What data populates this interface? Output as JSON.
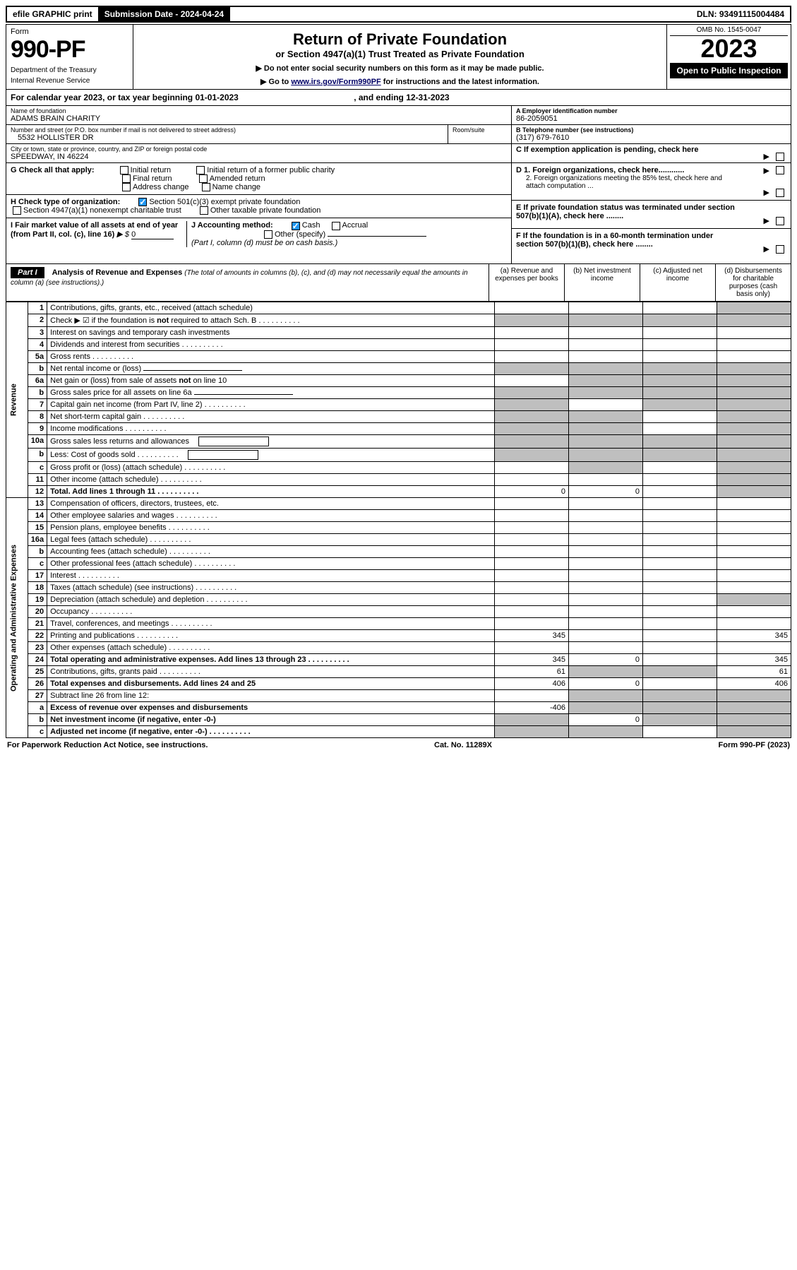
{
  "topbar": {
    "efile": "efile GRAPHIC print",
    "submission_label": "Submission Date - 2024-04-24",
    "dln": "DLN: 93491115004484"
  },
  "header": {
    "form_word": "Form",
    "form_number": "990-PF",
    "dept1": "Department of the Treasury",
    "dept2": "Internal Revenue Service",
    "title": "Return of Private Foundation",
    "subtitle": "or Section 4947(a)(1) Trust Treated as Private Foundation",
    "instr1": "▶ Do not enter social security numbers on this form as it may be made public.",
    "instr2_pre": "▶ Go to ",
    "instr2_link": "www.irs.gov/Form990PF",
    "instr2_post": " for instructions and the latest information.",
    "omb": "OMB No. 1545-0047",
    "year": "2023",
    "open": "Open to Public Inspection"
  },
  "calyear": {
    "text_pre": "For calendar year 2023, or tax year beginning ",
    "begin": "01-01-2023",
    "mid": " , and ending ",
    "end": "12-31-2023"
  },
  "id_block": {
    "name_label": "Name of foundation",
    "name": "ADAMS BRAIN CHARITY",
    "addr_label": "Number and street (or P.O. box number if mail is not delivered to street address)",
    "addr": "5532 HOLLISTER DR",
    "room_label": "Room/suite",
    "city_label": "City or town, state or province, country, and ZIP or foreign postal code",
    "city": "SPEEDWAY, IN  46224",
    "a_label": "A Employer identification number",
    "a_val": "86-2059051",
    "b_label": "B Telephone number (see instructions)",
    "b_val": "(317) 679-7610",
    "c_label": "C If exemption application is pending, check here",
    "d1_label": "D 1. Foreign organizations, check here............",
    "d2_label": "2. Foreign organizations meeting the 85% test, check here and attach computation ...",
    "e_label": "E  If private foundation status was terminated under section 507(b)(1)(A), check here ........",
    "f_label": "F  If the foundation is in a 60-month termination under section 507(b)(1)(B), check here ........"
  },
  "g_block": {
    "g_label": "G Check all that apply:",
    "opts": [
      "Initial return",
      "Initial return of a former public charity",
      "Final return",
      "Amended return",
      "Address change",
      "Name change"
    ],
    "h_label": "H Check type of organization:",
    "h_opt1": "Section 501(c)(3) exempt private foundation",
    "h_opt2": "Section 4947(a)(1) nonexempt charitable trust",
    "h_opt3": "Other taxable private foundation",
    "i_label": "I Fair market value of all assets at end of year (from Part II, col. (c), line 16)",
    "i_val": "0",
    "j_label": "J Accounting method:",
    "j_cash": "Cash",
    "j_accrual": "Accrual",
    "j_other": "Other (specify)",
    "j_note": "(Part I, column (d) must be on cash basis.)"
  },
  "partI": {
    "label": "Part I",
    "title": "Analysis of Revenue and Expenses",
    "note": " (The total of amounts in columns (b), (c), and (d) may not necessarily equal the amounts in column (a) (see instructions).)",
    "col_a": "(a)   Revenue and expenses per books",
    "col_b": "(b)   Net investment income",
    "col_c": "(c)   Adjusted net income",
    "col_d": "(d)   Disbursements for charitable purposes (cash basis only)"
  },
  "side_rev": "Revenue",
  "side_exp": "Operating and Administrative Expenses",
  "rows": [
    {
      "n": "1",
      "d": "Contributions, gifts, grants, etc., received (attach schedule)",
      "a": "",
      "b": "",
      "c": "",
      "dsh_b": false,
      "dsh_c": false,
      "dsh_d": true
    },
    {
      "n": "2",
      "d": "Check ▶ ☑ if the foundation is not required to attach Sch. B",
      "all_shade": true,
      "dots": true
    },
    {
      "n": "3",
      "d": "Interest on savings and temporary cash investments"
    },
    {
      "n": "4",
      "d": "Dividends and interest from securities",
      "dots": true
    },
    {
      "n": "5a",
      "d": "Gross rents",
      "dots": true
    },
    {
      "n": "b",
      "d": "Net rental income or (loss)",
      "inline_ul": true,
      "all_shade": true
    },
    {
      "n": "6a",
      "d": "Net gain or (loss) from sale of assets not on line 10",
      "dsh_b": true,
      "dsh_c": true,
      "dsh_d": true
    },
    {
      "n": "b",
      "d": "Gross sales price for all assets on line 6a",
      "inline_ul": true,
      "all_shade": true
    },
    {
      "n": "7",
      "d": "Capital gain net income (from Part IV, line 2)",
      "dots": true,
      "dsh_a": true,
      "dsh_c": true,
      "dsh_d": true
    },
    {
      "n": "8",
      "d": "Net short-term capital gain",
      "dots": true,
      "dsh_a": true,
      "dsh_b": true,
      "dsh_d": true
    },
    {
      "n": "9",
      "d": "Income modifications",
      "dots": true,
      "dsh_a": true,
      "dsh_b": true,
      "dsh_d": true
    },
    {
      "n": "10a",
      "d": "Gross sales less returns and allowances",
      "box": true,
      "all_shade": true
    },
    {
      "n": "b",
      "d": "Less: Cost of goods sold",
      "dots": true,
      "box": true,
      "all_shade": true
    },
    {
      "n": "c",
      "d": "Gross profit or (loss) (attach schedule)",
      "dots": true,
      "dsh_b": true,
      "dsh_d": true
    },
    {
      "n": "11",
      "d": "Other income (attach schedule)",
      "dots": true,
      "dsh_d": true
    },
    {
      "n": "12",
      "d": "Total. Add lines 1 through 11",
      "dots": true,
      "bold": true,
      "a": "0",
      "b": "0",
      "dsh_d": true
    }
  ],
  "exp_rows": [
    {
      "n": "13",
      "d": "Compensation of officers, directors, trustees, etc."
    },
    {
      "n": "14",
      "d": "Other employee salaries and wages",
      "dots": true
    },
    {
      "n": "15",
      "d": "Pension plans, employee benefits",
      "dots": true
    },
    {
      "n": "16a",
      "d": "Legal fees (attach schedule)",
      "dots": true
    },
    {
      "n": "b",
      "d": "Accounting fees (attach schedule)",
      "dots": true
    },
    {
      "n": "c",
      "d": "Other professional fees (attach schedule)",
      "dots": true
    },
    {
      "n": "17",
      "d": "Interest",
      "dots": true
    },
    {
      "n": "18",
      "d": "Taxes (attach schedule) (see instructions)",
      "dots": true
    },
    {
      "n": "19",
      "d": "Depreciation (attach schedule) and depletion",
      "dots": true,
      "dsh_d": true
    },
    {
      "n": "20",
      "d": "Occupancy",
      "dots": true
    },
    {
      "n": "21",
      "d": "Travel, conferences, and meetings",
      "dots": true
    },
    {
      "n": "22",
      "d": "Printing and publications",
      "dots": true,
      "a": "345",
      "dd": "345"
    },
    {
      "n": "23",
      "d": "Other expenses (attach schedule)",
      "dots": true
    },
    {
      "n": "24",
      "d": "Total operating and administrative expenses. Add lines 13 through 23",
      "dots": true,
      "bold": true,
      "a": "345",
      "b": "0",
      "dd": "345"
    },
    {
      "n": "25",
      "d": "Contributions, gifts, grants paid",
      "dots": true,
      "a": "61",
      "dsh_b": true,
      "dsh_c": true,
      "dd": "61"
    },
    {
      "n": "26",
      "d": "Total expenses and disbursements. Add lines 24 and 25",
      "bold": true,
      "a": "406",
      "b": "0",
      "dd": "406"
    },
    {
      "n": "27",
      "d": "Subtract line 26 from line 12:",
      "dsh_b": true,
      "dsh_c": true,
      "dsh_d": true
    },
    {
      "n": "a",
      "d": "Excess of revenue over expenses and disbursements",
      "bold": true,
      "a": "-406",
      "dsh_b": true,
      "dsh_c": true,
      "dsh_d": true
    },
    {
      "n": "b",
      "d": "Net investment income (if negative, enter -0-)",
      "bold": true,
      "dsh_a": true,
      "b": "0",
      "dsh_c": true,
      "dsh_d": true
    },
    {
      "n": "c",
      "d": "Adjusted net income (if negative, enter -0-)",
      "bold": true,
      "dots": true,
      "dsh_a": true,
      "dsh_b": true,
      "dsh_d": true
    }
  ],
  "footer": {
    "left": "For Paperwork Reduction Act Notice, see instructions.",
    "mid": "Cat. No. 11289X",
    "right": "Form 990-PF (2023)"
  },
  "colors": {
    "shade": "#bfbfbf",
    "check": "#2196f3",
    "link": "#000066"
  }
}
